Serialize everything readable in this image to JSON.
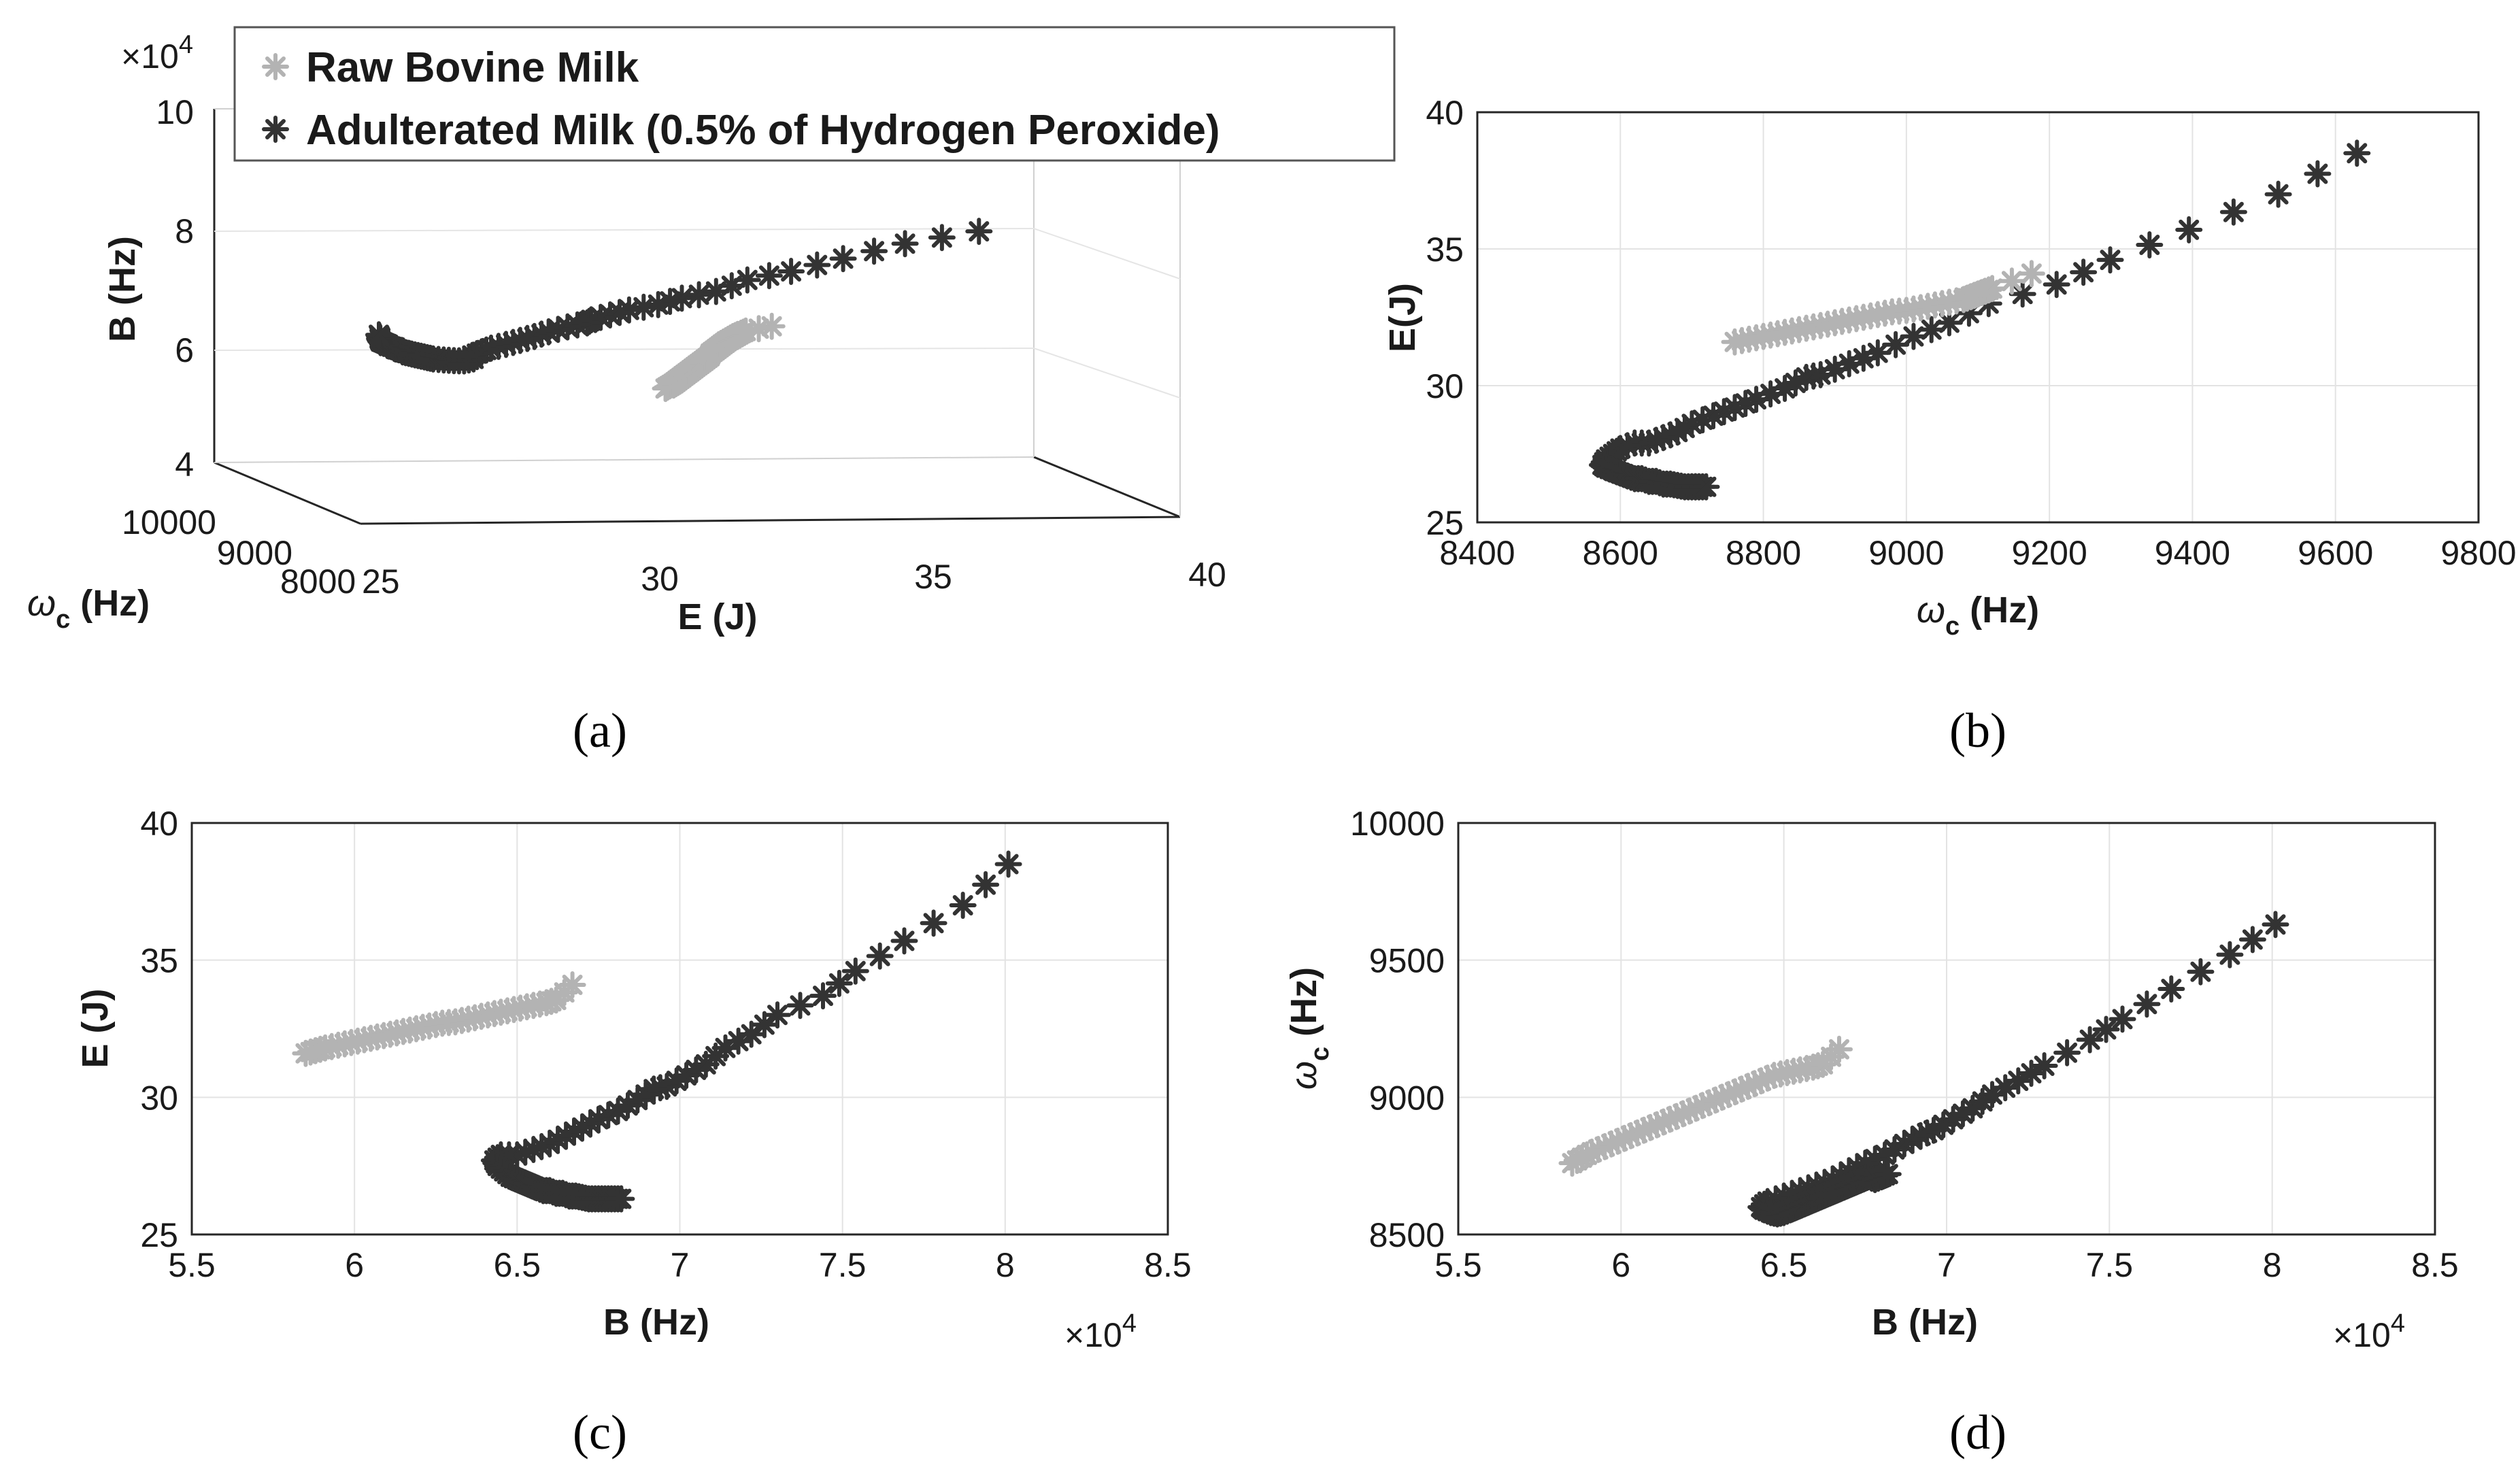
{
  "legend": {
    "entries": [
      {
        "label": "Raw Bovine Milk",
        "color": "#b3b3b3"
      },
      {
        "label": "Adulterated Milk (0.5% of Hydrogen Peroxide)",
        "color": "#333333"
      }
    ]
  },
  "captions": {
    "a": "(a)",
    "b": "(b)",
    "c": "(c)",
    "d": "(d)"
  },
  "colors": {
    "raw": "#b3b3b3",
    "adulterated": "#333333",
    "grid": "#e3e3e3",
    "axis": "#262626"
  },
  "chart_data": [
    {
      "id": "a",
      "type": "scatter",
      "projection": "3d",
      "title": "",
      "xlabel": "E (J)",
      "ylabel": "ω_c (Hz)",
      "ylabel_main": "ω",
      "ylabel_sub": "c",
      "ylabel_rest": " (Hz)",
      "zlabel": "B (Hz)",
      "xlim": [
        25,
        40
      ],
      "ylim": [
        8000,
        10000
      ],
      "zlim": [
        40000,
        100000
      ],
      "xticks": [
        "25",
        "30",
        "35",
        "40"
      ],
      "yticks": [
        "8000",
        "9000",
        "10000"
      ],
      "zticks": [
        "4",
        "6",
        "8",
        "10"
      ],
      "z_multiplier": "×10",
      "z_exponent": "4",
      "series_ref": [
        "raw",
        "adulterated"
      ]
    },
    {
      "id": "b",
      "type": "scatter",
      "title": "",
      "xlabel": "ω_c (Hz)",
      "xlabel_main": "ω",
      "xlabel_sub": "c",
      "xlabel_rest": " (Hz)",
      "ylabel": "E(J)",
      "xlim": [
        8400,
        9800
      ],
      "ylim": [
        25,
        40
      ],
      "xticks": [
        "8400",
        "8600",
        "8800",
        "9000",
        "9200",
        "9400",
        "9600",
        "9800"
      ],
      "yticks": [
        "25",
        "30",
        "35",
        "40"
      ],
      "x_field": "omega",
      "y_field": "E"
    },
    {
      "id": "c",
      "type": "scatter",
      "title": "",
      "xlabel": "B (Hz)",
      "ylabel": "E (J)",
      "xlim": [
        55000,
        85000
      ],
      "ylim": [
        25,
        40
      ],
      "xticks": [
        "5.5",
        "6",
        "6.5",
        "7",
        "7.5",
        "8",
        "8.5"
      ],
      "yticks": [
        "25",
        "30",
        "35",
        "40"
      ],
      "x_multiplier": "×10",
      "x_exponent": "4",
      "x_field": "B",
      "y_field": "E"
    },
    {
      "id": "d",
      "type": "scatter",
      "title": "",
      "xlabel": "B (Hz)",
      "ylabel": "ω_c (Hz)",
      "ylabel_main": "ω",
      "ylabel_sub": "c",
      "ylabel_rest": " (Hz)",
      "xlim": [
        55000,
        85000
      ],
      "ylim": [
        8500,
        10000
      ],
      "xticks": [
        "5.5",
        "6",
        "6.5",
        "7",
        "7.5",
        "8",
        "8.5"
      ],
      "yticks": [
        "8500",
        "9000",
        "9500",
        "10000"
      ],
      "x_multiplier": "×10",
      "x_exponent": "4",
      "x_field": "B",
      "y_field": "omega"
    }
  ],
  "series": {
    "raw": {
      "name": "Raw Bovine Milk",
      "B": [
        58500,
        58800,
        59100,
        59500,
        59900,
        60300,
        60700,
        61100,
        61500,
        61900,
        62300,
        62700,
        63100,
        63500,
        63900,
        64300,
        64700,
        65100,
        65500,
        65900,
        66200,
        66700
      ],
      "E": [
        31.6,
        31.7,
        31.8,
        31.9,
        32.0,
        32.1,
        32.2,
        32.3,
        32.4,
        32.5,
        32.6,
        32.7,
        32.75,
        32.85,
        32.95,
        33.05,
        33.15,
        33.25,
        33.35,
        33.45,
        33.55,
        34.1
      ],
      "omega": [
        8760,
        8780,
        8800,
        8820,
        8840,
        8860,
        8880,
        8900,
        8920,
        8940,
        8960,
        8980,
        9000,
        9020,
        9040,
        9060,
        9080,
        9090,
        9100,
        9110,
        9120,
        9175
      ]
    },
    "adulterated": {
      "name": "Adulterated Milk (0.5% of Hydrogen Peroxide)",
      "B": [
        80100,
        78700,
        76900,
        75400,
        74400,
        73000,
        72200,
        71400,
        70800,
        70200,
        69600,
        69200,
        68700,
        68100,
        67500,
        67000,
        66500,
        66000,
        65500,
        65000,
        64500,
        64300,
        64400,
        64600,
        64800,
        65000,
        65200,
        65400,
        65600,
        65800,
        66000,
        66200,
        66400,
        66600,
        66800,
        67000,
        67200,
        67400,
        67600,
        67800,
        68000,
        68200
      ],
      "E": [
        38.5,
        37.0,
        35.7,
        34.6,
        33.7,
        33.0,
        32.3,
        31.8,
        31.2,
        30.8,
        30.4,
        30.3,
        29.9,
        29.5,
        29.2,
        28.9,
        28.6,
        28.3,
        28.1,
        27.9,
        27.9,
        27.7,
        27.5,
        27.3,
        27.1,
        27.0,
        26.9,
        26.8,
        26.7,
        26.6,
        26.6,
        26.5,
        26.5,
        26.4,
        26.4,
        26.35,
        26.3,
        26.3,
        26.3,
        26.3,
        26.3,
        26.3
      ],
      "omega": [
        9630,
        9520,
        9395,
        9285,
        9210,
        9115,
        9060,
        9010,
        8960,
        8920,
        8880,
        8860,
        8830,
        8790,
        8760,
        8730,
        8700,
        8680,
        8660,
        8640,
        8620,
        8600,
        8590,
        8580,
        8575,
        8580,
        8590,
        8600,
        8610,
        8620,
        8630,
        8640,
        8650,
        8660,
        8670,
        8680,
        8690,
        8700,
        8710,
        8700,
        8710,
        8720
      ]
    }
  }
}
